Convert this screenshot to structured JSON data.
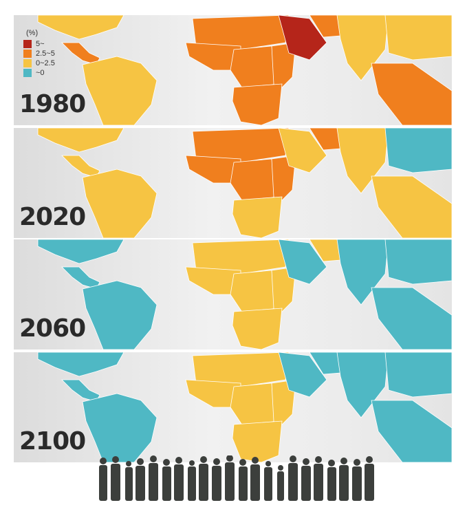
{
  "legend": {
    "unit": "(%)",
    "items": [
      {
        "label": "5~",
        "color": "#b5251a"
      },
      {
        "label": "2.5~5",
        "color": "#f07f1e"
      },
      {
        "label": "0~2.5",
        "color": "#f6c443"
      },
      {
        "label": "~0",
        "color": "#4fb8c4"
      }
    ]
  },
  "panels": [
    {
      "year": "1980",
      "colors": {
        "na": "#f6c443",
        "ca": "#f07f1e",
        "sa": "#f6c443",
        "nafr": "#f07f1e",
        "wafr": "#f07f1e",
        "cafr": "#f07f1e",
        "eafr": "#f07f1e",
        "safr": "#f07f1e",
        "arab": "#b5251a",
        "me": "#f07f1e",
        "sas": "#f6c443",
        "eas": "#f6c443",
        "sea": "#f07f1e"
      }
    },
    {
      "year": "2020",
      "colors": {
        "na": "#f6c443",
        "ca": "#f6c443",
        "sa": "#f6c443",
        "nafr": "#f07f1e",
        "wafr": "#f07f1e",
        "cafr": "#f07f1e",
        "eafr": "#f07f1e",
        "safr": "#f6c443",
        "arab": "#f6c443",
        "me": "#f07f1e",
        "sas": "#f6c443",
        "eas": "#4fb8c4",
        "sea": "#f6c443"
      }
    },
    {
      "year": "2060",
      "colors": {
        "na": "#4fb8c4",
        "ca": "#4fb8c4",
        "sa": "#4fb8c4",
        "nafr": "#f6c443",
        "wafr": "#f6c443",
        "cafr": "#f6c443",
        "eafr": "#f6c443",
        "safr": "#f6c443",
        "arab": "#4fb8c4",
        "me": "#f6c443",
        "sas": "#4fb8c4",
        "eas": "#4fb8c4",
        "sea": "#4fb8c4"
      }
    },
    {
      "year": "2100",
      "colors": {
        "na": "#4fb8c4",
        "ca": "#4fb8c4",
        "sa": "#4fb8c4",
        "nafr": "#f6c443",
        "wafr": "#f6c443",
        "cafr": "#f6c443",
        "eafr": "#f6c443",
        "safr": "#f6c443",
        "arab": "#4fb8c4",
        "me": "#4fb8c4",
        "sas": "#4fb8c4",
        "eas": "#4fb8c4",
        "sea": "#4fb8c4"
      }
    }
  ]
}
